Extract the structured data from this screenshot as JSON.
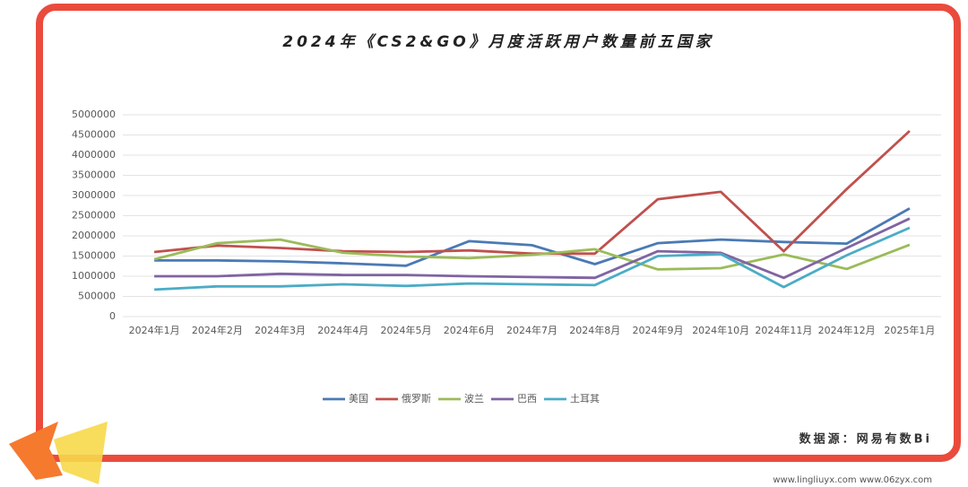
{
  "chart_data": {
    "type": "line",
    "title": "2024年《CS2&GO》月度活跃用户数量前五国家",
    "categories": [
      "2024年1月",
      "2024年2月",
      "2024年3月",
      "2024年4月",
      "2024年5月",
      "2024年6月",
      "2024年7月",
      "2024年8月",
      "2024年9月",
      "2024年10月",
      "2024年11月",
      "2024年12月",
      "2025年1月"
    ],
    "series": [
      {
        "name": "美国",
        "color": "#4a7ab5",
        "values": [
          1390000,
          1390000,
          1370000,
          1320000,
          1260000,
          1870000,
          1770000,
          1300000,
          1820000,
          1910000,
          1850000,
          1810000,
          2680000
        ]
      },
      {
        "name": "俄罗斯",
        "color": "#c0504d",
        "values": [
          1600000,
          1760000,
          1700000,
          1620000,
          1600000,
          1640000,
          1560000,
          1560000,
          2910000,
          3090000,
          1620000,
          3160000,
          4600000
        ]
      },
      {
        "name": "波兰",
        "color": "#9bbb59",
        "values": [
          1420000,
          1820000,
          1910000,
          1580000,
          1490000,
          1450000,
          1530000,
          1670000,
          1170000,
          1200000,
          1540000,
          1180000,
          1780000
        ]
      },
      {
        "name": "巴西",
        "color": "#8064a2",
        "values": [
          1000000,
          1000000,
          1060000,
          1030000,
          1030000,
          1000000,
          980000,
          960000,
          1620000,
          1580000,
          960000,
          1700000,
          2430000
        ]
      },
      {
        "name": "土耳其",
        "color": "#4bacc6",
        "values": [
          670000,
          750000,
          750000,
          800000,
          760000,
          820000,
          800000,
          780000,
          1500000,
          1550000,
          730000,
          1520000,
          2200000
        ]
      }
    ],
    "ylim": [
      0,
      5000000
    ],
    "yticks": [
      0,
      500000,
      1000000,
      1500000,
      2000000,
      2500000,
      3000000,
      3500000,
      4000000,
      4500000,
      5000000
    ],
    "grid": true,
    "legend": "bottom",
    "source": "数据源：网易有数Bi",
    "watermark": "www.lingliuyx.com  www.06zyx.com"
  }
}
